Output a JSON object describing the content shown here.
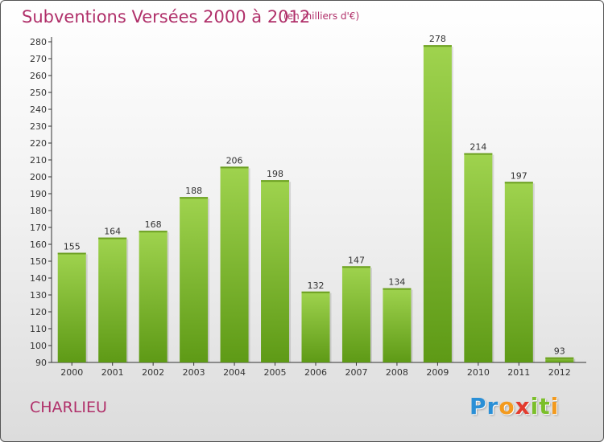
{
  "title": "Subventions Versées 2000 à 2012",
  "subtitle": "(en milliers d'€)",
  "place": "CHARLIEU",
  "logo": {
    "letters": [
      {
        "ch": "P",
        "color": "#2a8fd6"
      },
      {
        "ch": "r",
        "color": "#2a8fd6"
      },
      {
        "ch": "o",
        "color": "#f39a1e"
      },
      {
        "ch": "x",
        "color": "#e23b2e"
      },
      {
        "ch": "i",
        "color": "#7bbf2a"
      },
      {
        "ch": "t",
        "color": "#7bbf2a"
      },
      {
        "ch": "i",
        "color": "#f39a1e"
      }
    ]
  },
  "colors": {
    "title": "#b0306a",
    "bar_light": "#9fd34e",
    "bar_dark": "#5e9a16",
    "axis": "#333333"
  },
  "chart_data": {
    "type": "bar",
    "title": "Subventions Versées 2000 à 2012",
    "subtitle": "(en milliers d'€)",
    "categories": [
      "2000",
      "2001",
      "2002",
      "2003",
      "2004",
      "2005",
      "2006",
      "2007",
      "2008",
      "2009",
      "2010",
      "2011",
      "2012"
    ],
    "values": [
      155,
      164,
      168,
      188,
      206,
      198,
      132,
      147,
      134,
      278,
      214,
      197,
      93
    ],
    "ylim": [
      90,
      280
    ],
    "yticks": [
      90,
      100,
      110,
      120,
      130,
      140,
      150,
      160,
      170,
      180,
      190,
      200,
      210,
      220,
      230,
      240,
      250,
      260,
      270,
      280
    ],
    "grid": false,
    "show_data_labels": true
  }
}
